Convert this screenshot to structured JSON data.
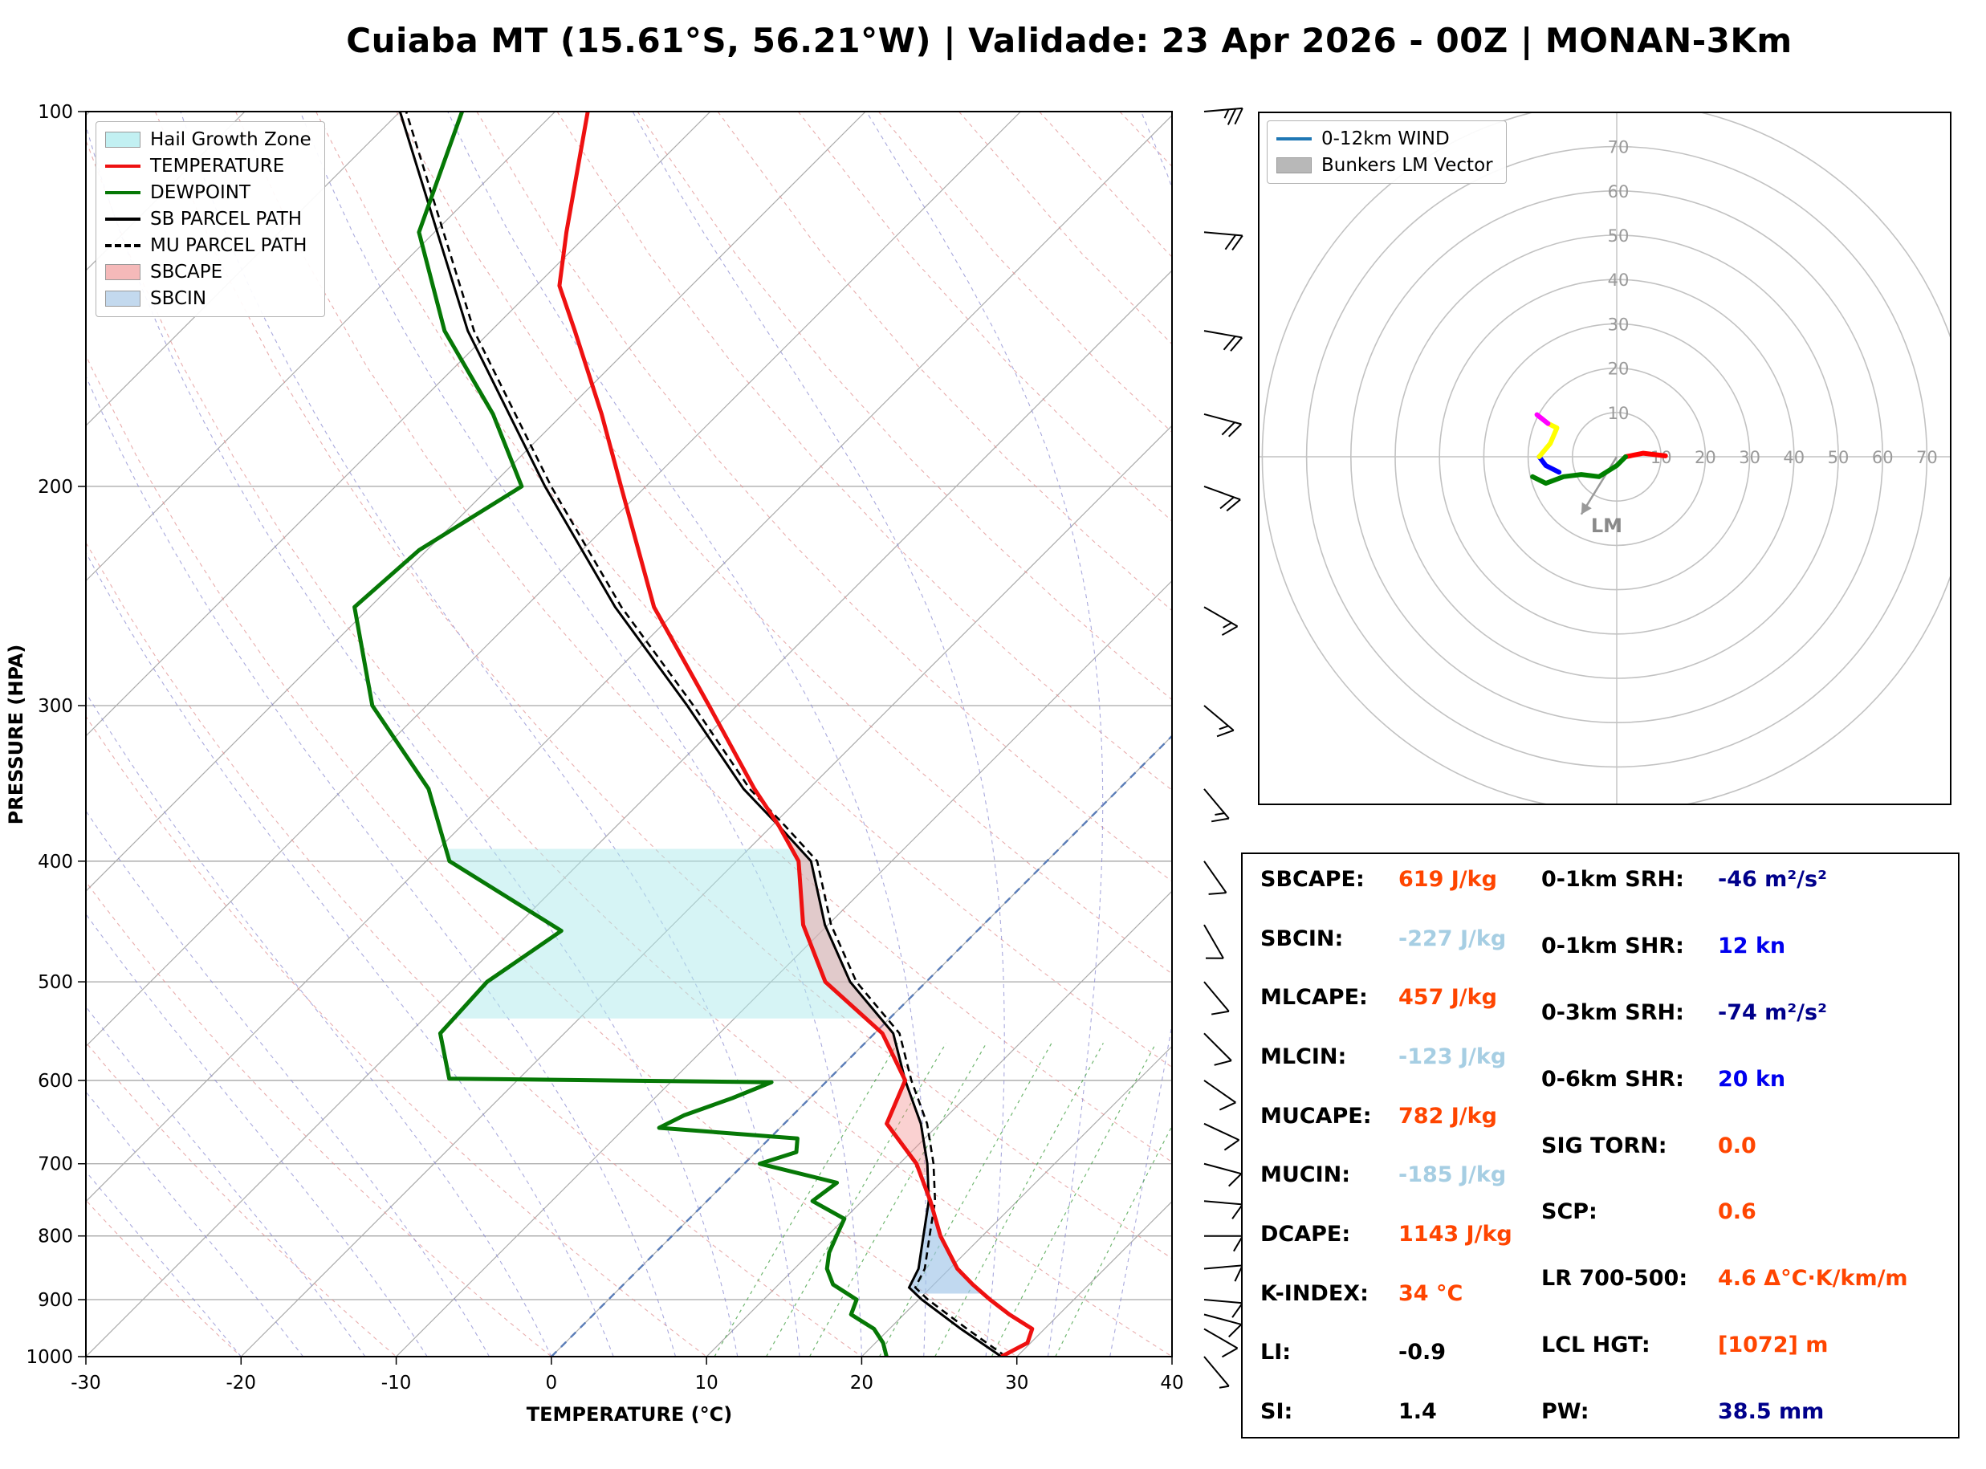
{
  "title": "Cuiaba MT (15.61°S, 56.21°W) | Validade: 23 Apr 2026 - 00Z | MONAN-3Km",
  "skewt": {
    "xlabel": "TEMPERATURE (°C)",
    "ylabel": "PRESSURE (HPA)",
    "legend": [
      {
        "label": "Hail Growth Zone",
        "swatch": "patch",
        "color": "#c2f0f2"
      },
      {
        "label": "TEMPERATURE",
        "swatch": "line",
        "color": "#ee1111"
      },
      {
        "label": "DEWPOINT",
        "swatch": "line",
        "color": "#067806"
      },
      {
        "label": "SB PARCEL PATH",
        "swatch": "line",
        "color": "#000000"
      },
      {
        "label": "MU PARCEL PATH",
        "swatch": "dashed-line",
        "color": "#000000"
      },
      {
        "label": "SBCAPE",
        "swatch": "patch",
        "color": "#f5b9b9"
      },
      {
        "label": "SBCIN",
        "swatch": "patch",
        "color": "#c3d9ee"
      }
    ]
  },
  "hodograph_panel": {
    "legend": [
      {
        "label": "0-12km WIND",
        "swatch": "line",
        "color": "#1f77b4"
      },
      {
        "label": "Bunkers LM Vector",
        "swatch": "patch",
        "color": "#b8b8b8"
      }
    ],
    "lm_label": "LM"
  },
  "chart_data": {
    "type": "skewt-sounding",
    "axes": {
      "pressure_hpa": [
        100,
        1000
      ],
      "temperature_c": [
        -30,
        40
      ],
      "x_ticks": [
        -30,
        -20,
        -10,
        0,
        10,
        20,
        30,
        40
      ],
      "y_ticks": [
        100,
        200,
        300,
        400,
        500,
        600,
        700,
        800,
        900,
        1000
      ]
    },
    "temperature_profile": [
      [
        1000,
        29.0
      ],
      [
        975,
        29.8
      ],
      [
        950,
        29.2
      ],
      [
        925,
        26.8
      ],
      [
        900,
        24.6
      ],
      [
        875,
        22.5
      ],
      [
        850,
        20.5
      ],
      [
        800,
        17.3
      ],
      [
        750,
        14.4
      ],
      [
        700,
        11.1
      ],
      [
        650,
        6.6
      ],
      [
        600,
        5.0
      ],
      [
        550,
        0.5
      ],
      [
        500,
        -6.5
      ],
      [
        450,
        -11.6
      ],
      [
        400,
        -16.0
      ],
      [
        375,
        -19.5
      ],
      [
        350,
        -23.5
      ],
      [
        300,
        -31.8
      ],
      [
        250,
        -41.7
      ],
      [
        200,
        -51.6
      ],
      [
        175,
        -57.5
      ],
      [
        150,
        -64.6
      ],
      [
        138,
        -68.5
      ],
      [
        125,
        -71.5
      ],
      [
        100,
        -77.9
      ]
    ],
    "dewpoint_profile": [
      [
        1000,
        21.6
      ],
      [
        975,
        20.5
      ],
      [
        950,
        19.0
      ],
      [
        925,
        16.6
      ],
      [
        900,
        16.0
      ],
      [
        875,
        13.5
      ],
      [
        850,
        12.1
      ],
      [
        825,
        11.2
      ],
      [
        800,
        10.6
      ],
      [
        775,
        10.0
      ],
      [
        750,
        6.8
      ],
      [
        725,
        7.2
      ],
      [
        700,
        1.0
      ],
      [
        685,
        2.6
      ],
      [
        668,
        1.8
      ],
      [
        655,
        -7.8
      ],
      [
        640,
        -7.0
      ],
      [
        620,
        -5.0
      ],
      [
        602,
        -3.5
      ],
      [
        598,
        -24.5
      ],
      [
        550,
        -28.0
      ],
      [
        500,
        -28.3
      ],
      [
        455,
        -26.8
      ],
      [
        400,
        -38.5
      ],
      [
        350,
        -44.5
      ],
      [
        300,
        -53.5
      ],
      [
        250,
        -61.0
      ],
      [
        225,
        -60.5
      ],
      [
        200,
        -58.0
      ],
      [
        175,
        -64.5
      ],
      [
        150,
        -73.0
      ],
      [
        125,
        -81.0
      ],
      [
        100,
        -86.0
      ]
    ],
    "sb_parcel_path": [
      [
        1000,
        29.0
      ],
      [
        950,
        24.6
      ],
      [
        900,
        20.2
      ],
      [
        880,
        18.6
      ],
      [
        850,
        18.0
      ],
      [
        800,
        16.2
      ],
      [
        750,
        14.3
      ],
      [
        700,
        11.8
      ],
      [
        650,
        8.8
      ],
      [
        600,
        5.0
      ],
      [
        550,
        1.2
      ],
      [
        500,
        -4.9
      ],
      [
        450,
        -10.2
      ],
      [
        400,
        -15.2
      ],
      [
        375,
        -19.5
      ],
      [
        350,
        -24.2
      ],
      [
        300,
        -33.2
      ],
      [
        250,
        -44.2
      ],
      [
        200,
        -56.5
      ],
      [
        150,
        -71.5
      ],
      [
        100,
        -90.0
      ]
    ],
    "mu_parcel_path": [
      [
        1000,
        29.3
      ],
      [
        950,
        25.0
      ],
      [
        900,
        20.6
      ],
      [
        880,
        19.0
      ],
      [
        850,
        18.4
      ],
      [
        800,
        16.6
      ],
      [
        750,
        14.7
      ],
      [
        700,
        12.2
      ],
      [
        650,
        9.2
      ],
      [
        600,
        5.4
      ],
      [
        550,
        1.6
      ],
      [
        500,
        -4.5
      ],
      [
        450,
        -9.8
      ],
      [
        400,
        -14.8
      ],
      [
        375,
        -19.1
      ],
      [
        350,
        -23.8
      ],
      [
        300,
        -32.8
      ],
      [
        250,
        -43.8
      ],
      [
        200,
        -56.1
      ],
      [
        150,
        -71.1
      ],
      [
        100,
        -89.6
      ]
    ],
    "hail_growth_zone_p": [
      535,
      390
    ],
    "wind_barbs": [
      [
        1000,
        140,
        5
      ],
      [
        950,
        120,
        8
      ],
      [
        925,
        105,
        10
      ],
      [
        900,
        95,
        10
      ],
      [
        850,
        85,
        12
      ],
      [
        800,
        90,
        10
      ],
      [
        750,
        95,
        10
      ],
      [
        700,
        105,
        12
      ],
      [
        650,
        115,
        10
      ],
      [
        600,
        125,
        8
      ],
      [
        550,
        135,
        10
      ],
      [
        500,
        140,
        10
      ],
      [
        450,
        150,
        12
      ],
      [
        400,
        145,
        12
      ],
      [
        350,
        140,
        15
      ],
      [
        300,
        130,
        15
      ],
      [
        250,
        120,
        15
      ],
      [
        200,
        110,
        18
      ],
      [
        175,
        105,
        20
      ],
      [
        150,
        100,
        20
      ],
      [
        125,
        95,
        22
      ],
      [
        100,
        85,
        25
      ]
    ],
    "hodograph": {
      "ring_interval_kn": 10,
      "ring_labels": [
        10,
        20,
        30,
        40,
        50,
        60,
        70
      ],
      "traces": [
        {
          "color": "red",
          "points": [
            [
              2,
              0
            ],
            [
              6,
              0.8
            ],
            [
              11,
              0.2
            ]
          ]
        },
        {
          "color": "green",
          "points": [
            [
              2,
              0
            ],
            [
              0,
              -2
            ],
            [
              -4,
              -4.5
            ],
            [
              -8,
              -4
            ],
            [
              -12,
              -4.5
            ],
            [
              -16,
              -6
            ],
            [
              -19,
              -4.5
            ]
          ]
        },
        {
          "color": "blue",
          "points": [
            [
              -13,
              -3.5
            ],
            [
              -16,
              -2
            ],
            [
              -17.5,
              0
            ]
          ]
        },
        {
          "color": "yellow",
          "points": [
            [
              -17.5,
              0
            ],
            [
              -15,
              3
            ],
            [
              -13.5,
              6.5
            ],
            [
              -15.5,
              7.5
            ]
          ]
        },
        {
          "color": "magenta",
          "points": [
            [
              -15.5,
              7.5
            ],
            [
              -18,
              9.5
            ]
          ]
        }
      ],
      "bunkers_lm": [
        -8,
        -13
      ]
    },
    "indices": {
      "left": [
        {
          "label": "SBCAPE:",
          "value": "619 J/kg",
          "color": "#ff4500"
        },
        {
          "label": "SBCIN:",
          "value": "-227 J/kg",
          "color": "#a6cee3"
        },
        {
          "label": "MLCAPE:",
          "value": "457 J/kg",
          "color": "#ff4500"
        },
        {
          "label": "MLCIN:",
          "value": "-123 J/kg",
          "color": "#a6cee3"
        },
        {
          "label": "MUCAPE:",
          "value": "782 J/kg",
          "color": "#ff4500"
        },
        {
          "label": "MUCIN:",
          "value": "-185 J/kg",
          "color": "#a6cee3"
        },
        {
          "label": "DCAPE:",
          "value": "1143 J/kg",
          "color": "#ff4500"
        },
        {
          "label": "K-INDEX:",
          "value": "34 °C",
          "color": "#ff4500"
        },
        {
          "label": "LI:",
          "value": "-0.9",
          "color": "#000000"
        },
        {
          "label": "SI:",
          "value": "1.4",
          "color": "#000000"
        }
      ],
      "right": [
        {
          "label": "0-1km SRH:",
          "value": "-46 m²/s²",
          "color": "#00008b"
        },
        {
          "label": "0-1km SHR:",
          "value": "12 kn",
          "color": "#0000ee"
        },
        {
          "label": "0-3km SRH:",
          "value": "-74 m²/s²",
          "color": "#00008b"
        },
        {
          "label": "0-6km SHR:",
          "value": "20 kn",
          "color": "#0000ee"
        },
        {
          "label": "SIG TORN:",
          "value": "0.0",
          "color": "#ff4500"
        },
        {
          "label": "SCP:",
          "value": "0.6",
          "color": "#ff4500"
        },
        {
          "label": "LR 700-500:",
          "value": "4.6 Δ°C·K/km/m",
          "color": "#ff4500"
        },
        {
          "label": "LCL HGT:",
          "value": "[1072] m",
          "color": "#ff4500"
        },
        {
          "label": "PW:",
          "value": "38.5 mm",
          "color": "#00008b"
        }
      ]
    }
  }
}
